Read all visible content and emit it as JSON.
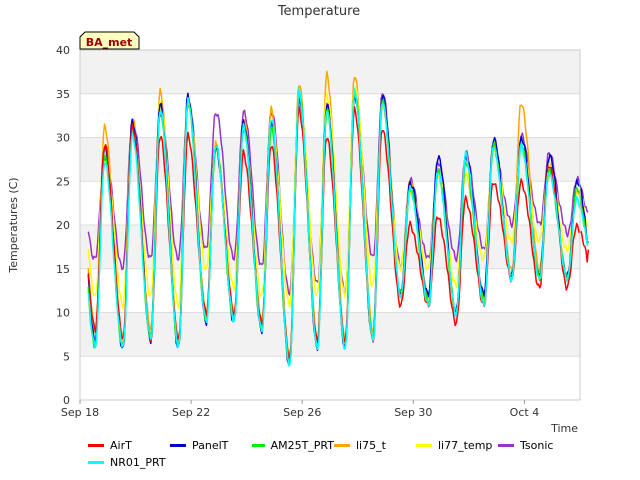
{
  "chart_data": {
    "type": "line",
    "title": "Temperature",
    "xlabel": "Time",
    "ylabel": "Temperatures (C)",
    "annotation": "BA_met",
    "ylim": [
      0,
      40
    ],
    "xlim": [
      "2023-09-18",
      "2023-10-06"
    ],
    "yticks": [
      0,
      5,
      10,
      15,
      20,
      25,
      30,
      35,
      40
    ],
    "xticks": [
      {
        "date": "2023-09-18",
        "label": "Sep 18"
      },
      {
        "date": "2023-09-22",
        "label": "Sep 22"
      },
      {
        "date": "2023-09-26",
        "label": "Sep 26"
      },
      {
        "date": "2023-09-30",
        "label": "Sep 30"
      },
      {
        "date": "2023-10-04",
        "label": "Oct 4"
      }
    ],
    "grid": true,
    "legend_position": "bottom",
    "days": [
      "Sep 18",
      "Sep 19",
      "Sep 20",
      "Sep 21",
      "Sep 22",
      "Sep 23",
      "Sep 24",
      "Sep 25",
      "Sep 26",
      "Sep 27",
      "Sep 28",
      "Sep 29",
      "Sep 30",
      "Oct 1",
      "Oct 2",
      "Oct 3",
      "Oct 4",
      "Oct 5"
    ],
    "series": [
      {
        "name": "AirT",
        "color": "#ff0000",
        "daily_max": [
          29,
          31,
          30,
          30,
          29,
          28,
          29,
          33,
          30,
          33,
          31,
          20,
          21,
          23,
          25,
          25,
          27,
          20
        ],
        "daily_min": [
          8,
          7,
          7,
          7,
          10,
          10,
          9,
          5,
          7,
          7,
          7,
          11,
          11,
          9,
          11,
          14,
          13,
          13
        ]
      },
      {
        "name": "PanelT",
        "color": "#0000cc",
        "daily_max": [
          29,
          32,
          34,
          35,
          29,
          32,
          32,
          35,
          34,
          35,
          35,
          25,
          28,
          28,
          30,
          30,
          28,
          25
        ],
        "daily_min": [
          7,
          6,
          7,
          6,
          9,
          9,
          8,
          4,
          6,
          6,
          7,
          12,
          12,
          10,
          12,
          14,
          14,
          14
        ]
      },
      {
        "name": "AM25T_PRT",
        "color": "#00ee00",
        "daily_max": [
          28,
          31,
          33,
          34,
          29,
          31,
          31,
          35,
          33,
          35,
          34,
          24,
          26,
          27,
          29,
          29,
          26,
          24
        ],
        "daily_min": [
          6,
          6,
          7,
          6,
          9,
          9,
          8,
          4,
          6,
          6,
          7,
          12,
          11,
          10,
          11,
          14,
          14,
          14
        ]
      },
      {
        "name": "li75_t",
        "color": "#ffa500",
        "daily_max": [
          31,
          32,
          35,
          34,
          29,
          32,
          33,
          36,
          37,
          37,
          34,
          25,
          26,
          26,
          29,
          34,
          27,
          24
        ],
        "daily_min": [
          8,
          7,
          8,
          7,
          10,
          10,
          9,
          5,
          7,
          7,
          8,
          12,
          12,
          10,
          12,
          15,
          15,
          14
        ]
      },
      {
        "name": "li77_temp",
        "color": "#ffff00",
        "daily_max": [
          29,
          31,
          34,
          34,
          29,
          31,
          32,
          35,
          35,
          36,
          34,
          24,
          26,
          26,
          29,
          29,
          27,
          24
        ],
        "daily_min": [
          12,
          11,
          12,
          11,
          15,
          13,
          12,
          11,
          12,
          12,
          13,
          15,
          15,
          13,
          16,
          18,
          18,
          17
        ]
      },
      {
        "name": "Tsonic",
        "color": "#9932cc",
        "daily_max": [
          28,
          32,
          33,
          34,
          33,
          33,
          33,
          34,
          34,
          35,
          35,
          25,
          27,
          28,
          29,
          30,
          28,
          25
        ],
        "daily_min": [
          16,
          15,
          16,
          16,
          17,
          16,
          15,
          12,
          13,
          12,
          16,
          15,
          16,
          16,
          17,
          20,
          20,
          19
        ]
      },
      {
        "name": "NR01_PRT",
        "color": "#00ffff",
        "daily_max": [
          27,
          30,
          33,
          34,
          29,
          31,
          32,
          35,
          33,
          35,
          34,
          24,
          26,
          28,
          29,
          29,
          26,
          23
        ],
        "daily_min": [
          6,
          6,
          7,
          6,
          9,
          9,
          8,
          4,
          6,
          6,
          7,
          12,
          11,
          10,
          11,
          14,
          14,
          14
        ]
      }
    ]
  }
}
